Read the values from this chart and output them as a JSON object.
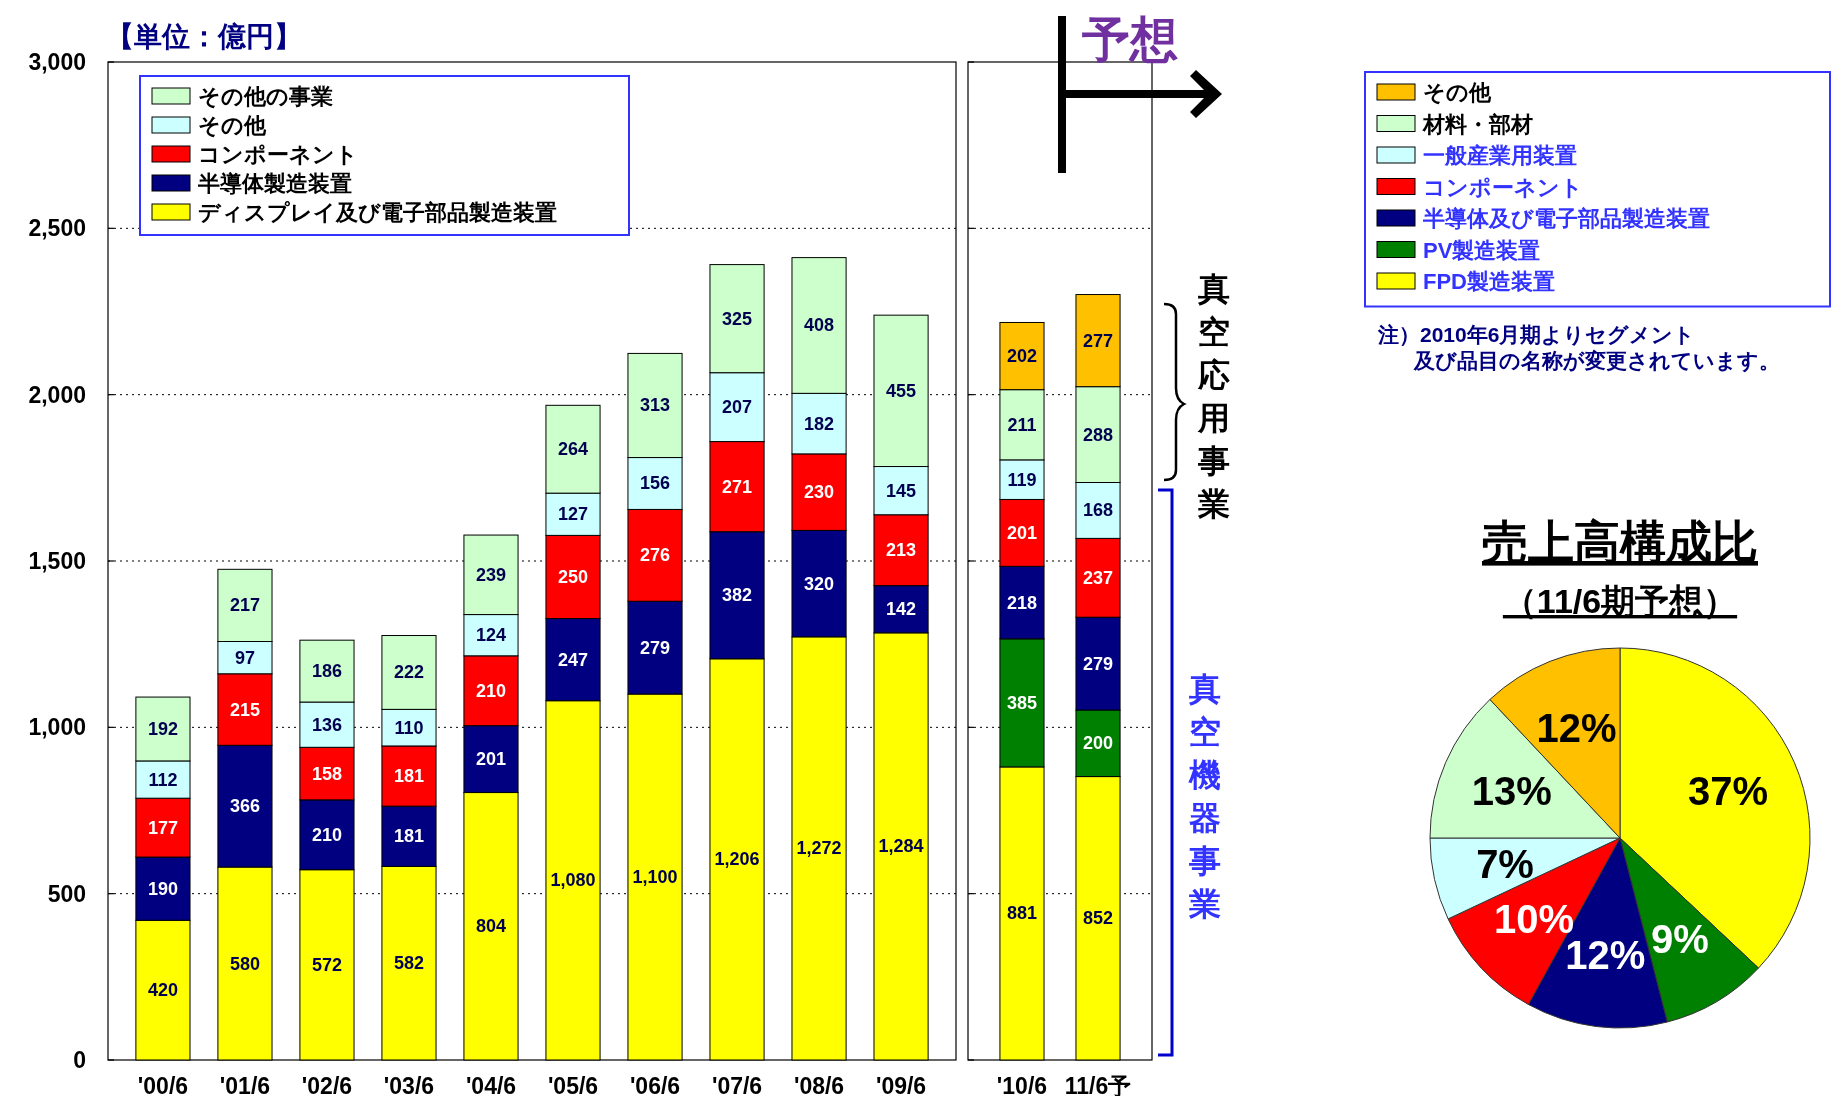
{
  "chart_data": [
    {
      "type": "bar",
      "stacked": true,
      "categories": [
        "'00/6",
        "'01/6",
        "'02/6",
        "'03/6",
        "'04/6",
        "'05/6",
        "'06/6",
        "'07/6",
        "'08/6",
        "'09/6"
      ],
      "series": [
        {
          "name": "ディスプレイ及び電子部品製造装置",
          "color": "#ffff00",
          "values": [
            420,
            580,
            572,
            582,
            804,
            1080,
            1100,
            1206,
            1272,
            1284
          ],
          "value_labels": [
            "420",
            "580",
            "572",
            "582",
            "804",
            "1,080",
            "1,100",
            "1,206",
            "1,272",
            "1,284"
          ]
        },
        {
          "name": "半導体製造装置",
          "color": "#000080",
          "values": [
            190,
            366,
            210,
            181,
            201,
            247,
            279,
            382,
            320,
            142
          ],
          "value_labels": [
            "190",
            "366",
            "210",
            "181",
            "201",
            "247",
            "279",
            "382",
            "320",
            "142"
          ]
        },
        {
          "name": "コンポーネント",
          "color": "#ff0000",
          "values": [
            177,
            215,
            158,
            181,
            210,
            250,
            276,
            271,
            230,
            213
          ],
          "value_labels": [
            "177",
            "215",
            "158",
            "181",
            "210",
            "250",
            "276",
            "271",
            "230",
            "213"
          ]
        },
        {
          "name": "その他",
          "color": "#ccffff",
          "values": [
            112,
            97,
            136,
            110,
            124,
            127,
            156,
            207,
            182,
            145
          ],
          "value_labels": [
            "112",
            "97",
            "136",
            "110",
            "124",
            "127",
            "156",
            "207",
            "182",
            "145"
          ]
        },
        {
          "name": "その他の事業",
          "color": "#ccffcc",
          "values": [
            192,
            217,
            186,
            222,
            239,
            264,
            313,
            325,
            408,
            455
          ],
          "value_labels": [
            "192",
            "217",
            "186",
            "222",
            "239",
            "264",
            "313",
            "325",
            "408",
            "455"
          ]
        }
      ],
      "ylim": [
        0,
        3000
      ],
      "yticks": [
        0,
        500,
        {
          "value": 1000,
          "label": "1,000"
        },
        {
          "value": 1500,
          "label": "1,500"
        },
        {
          "value": 2000,
          "label": "2,000"
        },
        {
          "value": 2500,
          "label": "2,500"
        },
        {
          "value": 3000,
          "label": "3,000"
        }
      ],
      "grid": "y",
      "legend": "top left",
      "annotations": [
        "【単位：億円】"
      ]
    },
    {
      "type": "bar",
      "stacked": true,
      "categories": [
        "'10/6",
        "11/6予"
      ],
      "series": [
        {
          "name": "FPD製造装置",
          "color": "#ffff00",
          "values": [
            881,
            852
          ]
        },
        {
          "name": "PV製造装置",
          "color": "#008000",
          "values": [
            385,
            200
          ]
        },
        {
          "name": "半導体及び電子部品製造装置",
          "color": "#000080",
          "values": [
            218,
            279
          ]
        },
        {
          "name": "コンポーネント",
          "color": "#ff0000",
          "values": [
            201,
            237
          ]
        },
        {
          "name": "一般産業用装置",
          "color": "#ccffff",
          "values": [
            119,
            168
          ]
        },
        {
          "name": "材料・部材",
          "color": "#ccffcc",
          "values": [
            211,
            288
          ]
        },
        {
          "name": "その他",
          "color": "#ffc000",
          "values": [
            202,
            277
          ]
        }
      ],
      "ylim": [
        0,
        3000
      ],
      "yticks": [
        0,
        500,
        1000,
        1500,
        2000,
        2500,
        3000
      ],
      "tick_labels": "x",
      "grid": "y",
      "legend": "right",
      "data_labels": true,
      "annotations": [
        "予想",
        "真空応用事業",
        "真空機器事業",
        "注）2010年6月期よりセグメント",
        "及び品目の名称が変更されています。"
      ]
    },
    {
      "type": "pie",
      "title": "売上高構成比",
      "subtitle": "（11/6期予想）",
      "categories": [
        null,
        null,
        null,
        null,
        null,
        null,
        null
      ],
      "values": [
        37,
        9,
        12,
        10,
        7,
        13,
        12
      ],
      "colors": [
        "#ffff00",
        "#008000",
        "#000080",
        "#ff0000",
        "#ccffff",
        "#ccffcc",
        "#ffc000"
      ],
      "value_labels": [
        "37%",
        "9%",
        "12%",
        "10%",
        "7%",
        "13%",
        "12%"
      ]
    }
  ]
}
